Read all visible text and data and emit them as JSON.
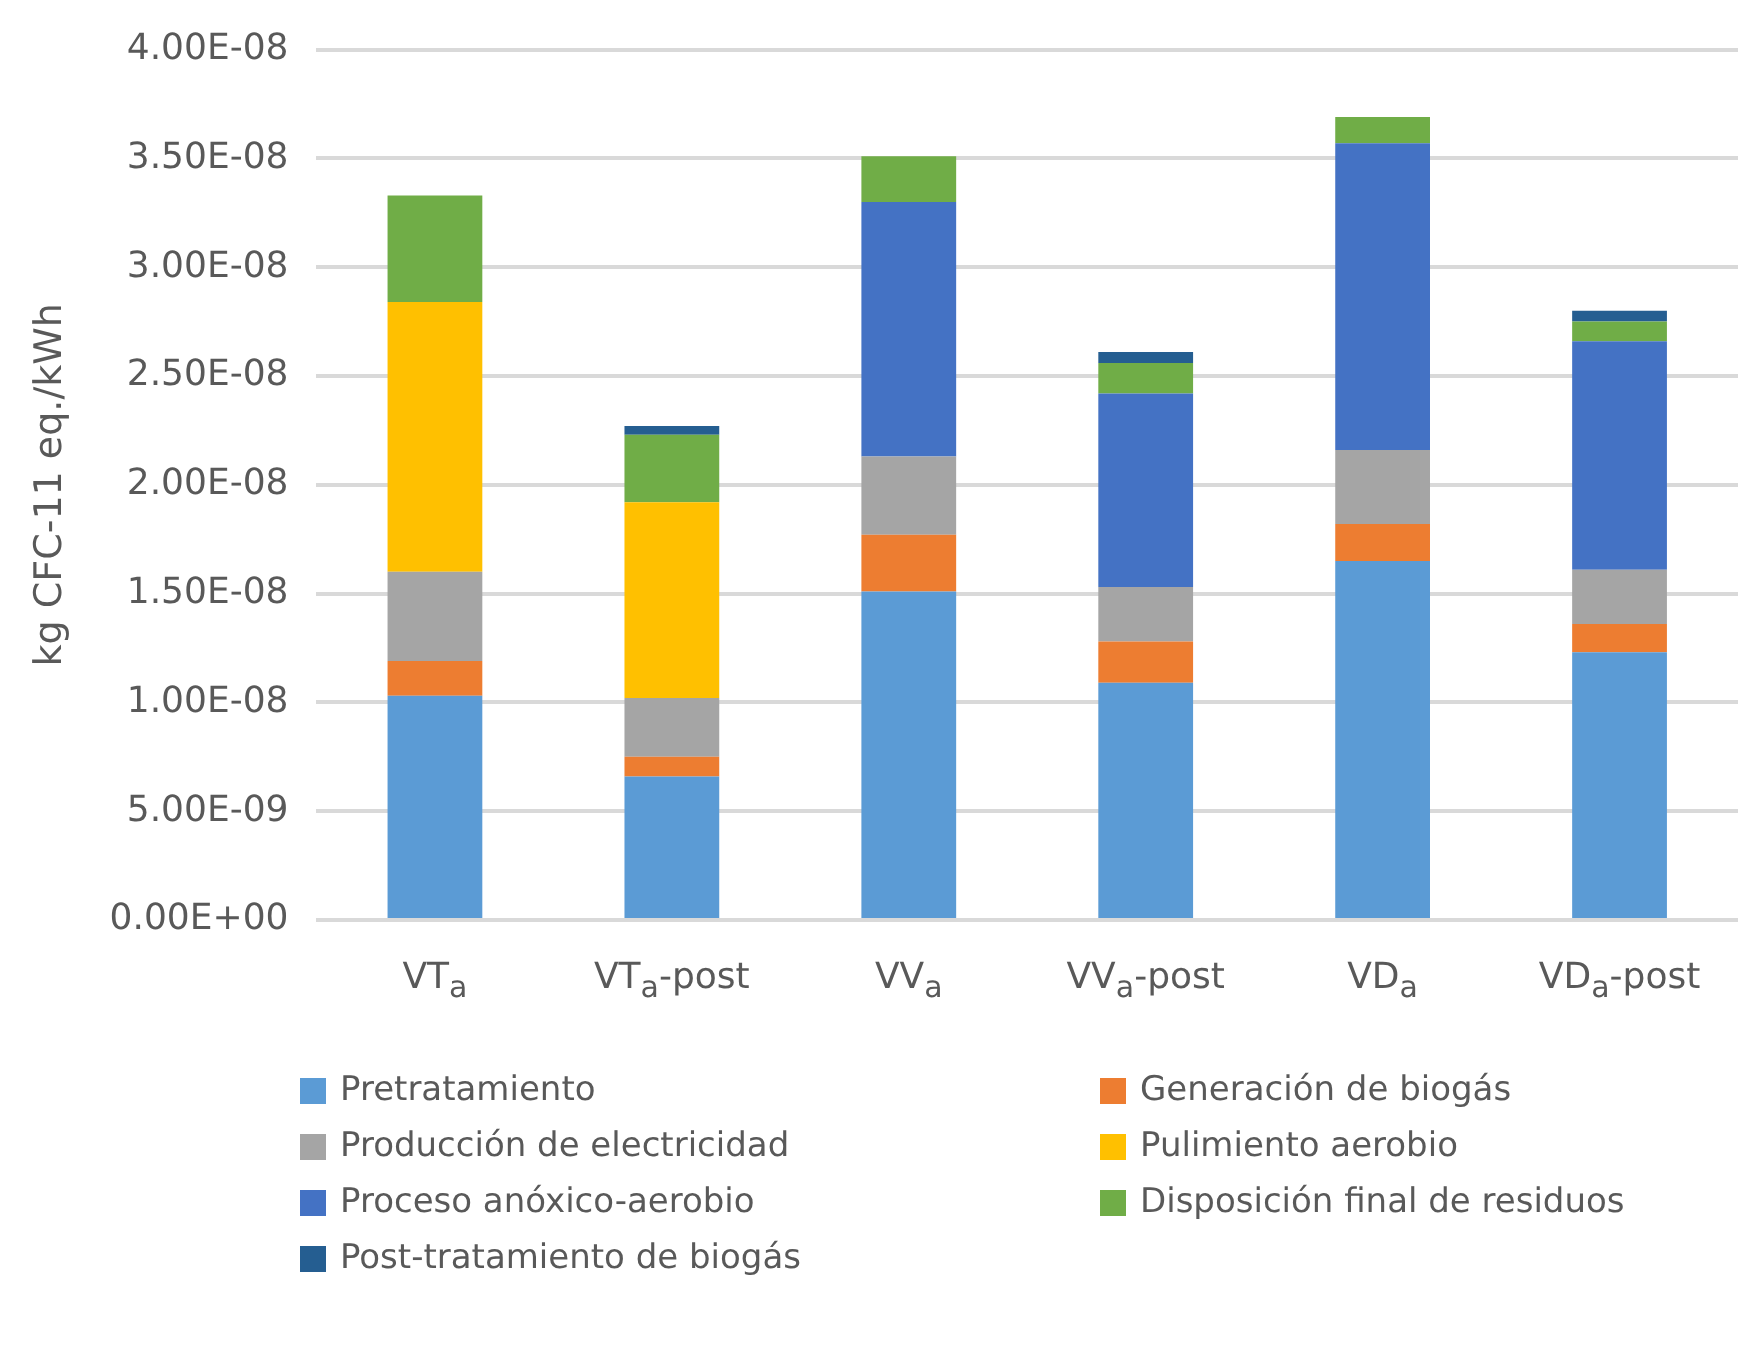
{
  "chart_data": {
    "type": "bar",
    "stacked": true,
    "ylabel": "kg CFC-11 eq./kWh",
    "categories": [
      "VT$_{a}$",
      "VT$_{a}$-post",
      "VV$_{a}$",
      "VV$_{a}$-post",
      "VD$_{a}$",
      "VD$_{a}$-post"
    ],
    "series": [
      {
        "name": "Pretratamiento",
        "color": "#5b9bd5",
        "values": [
          1.03e-08,
          6.6e-09,
          1.51e-08,
          1.09e-08,
          1.65e-08,
          1.23e-08
        ]
      },
      {
        "name": "Generación de biogás",
        "color": "#ed7d31",
        "values": [
          1.6e-09,
          9e-10,
          2.6e-09,
          1.9e-09,
          1.7e-09,
          1.3e-09
        ]
      },
      {
        "name": "Producción de electricidad",
        "color": "#a5a5a5",
        "values": [
          4.1e-09,
          2.7e-09,
          3.6e-09,
          2.5e-09,
          3.4e-09,
          2.5e-09
        ]
      },
      {
        "name": "Pulimiento aerobio",
        "color": "#ffc000",
        "values": [
          1.24e-08,
          9e-09,
          null,
          null,
          null,
          null
        ]
      },
      {
        "name": "Proceso anóxico-aerobio",
        "color": "#4472c4",
        "values": [
          null,
          null,
          1.17e-08,
          8.9e-09,
          1.41e-08,
          1.05e-08
        ]
      },
      {
        "name": "Disposición final de residuos",
        "color": "#70ad47",
        "values": [
          4.9e-09,
          3.1e-09,
          2.1e-09,
          1.4e-09,
          1.2e-09,
          9e-10
        ]
      },
      {
        "name": "Post-tratamiento de biogás",
        "color": "#255e91",
        "values": [
          null,
          4e-10,
          null,
          5e-10,
          null,
          5e-10
        ]
      }
    ],
    "ylim": [
      0,
      4e-08
    ],
    "yticks": [
      {
        "value": 0,
        "label": "0.00E+00"
      },
      {
        "value": 5e-09,
        "label": "5.00E-09"
      },
      {
        "value": 1e-08,
        "label": "1.00E-08"
      },
      {
        "value": 1.5e-08,
        "label": "1.50E-08"
      },
      {
        "value": 2e-08,
        "label": "2.00E-08"
      },
      {
        "value": 2.5e-08,
        "label": "2.50E-08"
      },
      {
        "value": 3e-08,
        "label": "3.00E-08"
      },
      {
        "value": 3.5e-08,
        "label": "3.50E-08"
      },
      {
        "value": 4e-08,
        "label": "4.00E-08"
      }
    ],
    "grid": "y",
    "legend": "bottom"
  }
}
